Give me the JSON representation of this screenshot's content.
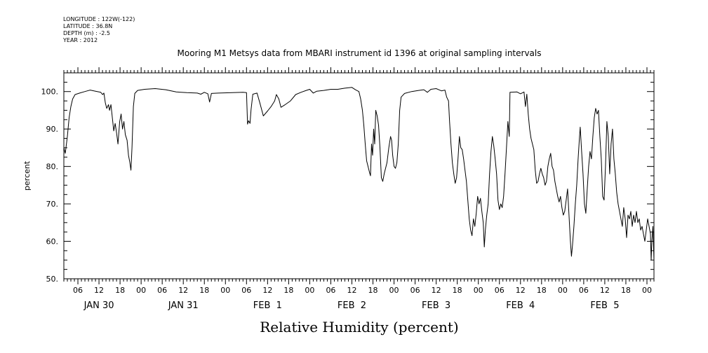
{
  "header": {
    "meta_lines": [
      "LONGITUDE : 122W(-122)",
      "LATITUDE : 36.8N",
      "DEPTH (m) : -2.5",
      "YEAR : 2012"
    ],
    "title": "Mooring M1 Metsys data from MBARI instrument id 1396 at original sampling intervals"
  },
  "chart_data": {
    "type": "line",
    "title": "Mooring M1 Metsys data from MBARI instrument id 1396 at original sampling intervals",
    "xlabel": "Relative Humidity (percent)",
    "ylabel": "percent",
    "ylim": [
      50,
      105
    ],
    "yticks": [
      50,
      60,
      70,
      80,
      90,
      100
    ],
    "ytick_labels": [
      "50.",
      "60.",
      "70.",
      "80.",
      "90.",
      "100."
    ],
    "xlim_hours": [
      2,
      170
    ],
    "x_unit": "hours after 2012-01-30 00:00",
    "hour_tick_labels": [
      "06",
      "12",
      "18",
      "00",
      "06",
      "12",
      "18",
      "00",
      "06",
      "12",
      "18",
      "00",
      "06",
      "12",
      "18",
      "00",
      "06",
      "12",
      "18",
      "00",
      "06",
      "12",
      "18",
      "00",
      "06",
      "12",
      "18",
      "00"
    ],
    "day_labels": [
      "JAN 30",
      "JAN 31",
      "FEB  1",
      "FEB  2",
      "FEB  3",
      "FEB  4",
      "FEB  5"
    ],
    "grid": false,
    "series": [
      {
        "color": "#000000",
        "points": [
          [
            2.0,
            85
          ],
          [
            2.4,
            83.5
          ],
          [
            3.0,
            88
          ],
          [
            3.5,
            93
          ],
          [
            4.0,
            96
          ],
          [
            4.5,
            98
          ],
          [
            5.2,
            99.2
          ],
          [
            6.5,
            99.6
          ],
          [
            8.0,
            100
          ],
          [
            9.5,
            100.4
          ],
          [
            11.0,
            100.1
          ],
          [
            12.5,
            99.8
          ],
          [
            13.0,
            99.2
          ],
          [
            13.4,
            99.6
          ],
          [
            13.8,
            97
          ],
          [
            14.2,
            95.5
          ],
          [
            14.7,
            96.5
          ],
          [
            15.0,
            95
          ],
          [
            15.4,
            96.5
          ],
          [
            15.8,
            93
          ],
          [
            16.2,
            89.5
          ],
          [
            16.6,
            91.5
          ],
          [
            17.0,
            89
          ],
          [
            17.4,
            86
          ],
          [
            17.9,
            92
          ],
          [
            18.3,
            94
          ],
          [
            18.7,
            90
          ],
          [
            19.1,
            92
          ],
          [
            19.5,
            88.5
          ],
          [
            20.0,
            87
          ],
          [
            20.4,
            83
          ],
          [
            20.8,
            81
          ],
          [
            21.1,
            79
          ],
          [
            21.4,
            85
          ],
          [
            21.8,
            96
          ],
          [
            22.2,
            99.5
          ],
          [
            23.0,
            100.3
          ],
          [
            25.0,
            100.6
          ],
          [
            28.0,
            100.8
          ],
          [
            31.0,
            100.5
          ],
          [
            34.0,
            99.9
          ],
          [
            37.0,
            99.7
          ],
          [
            40.0,
            99.6
          ],
          [
            41.0,
            99.3
          ],
          [
            42.0,
            99.8
          ],
          [
            43.0,
            99.4
          ],
          [
            43.5,
            97.2
          ],
          [
            44.0,
            99.5
          ],
          [
            46.0,
            99.6
          ],
          [
            50.0,
            99.7
          ],
          [
            53.0,
            99.8
          ],
          [
            54.0,
            99.7
          ],
          [
            54.3,
            91.3
          ],
          [
            54.6,
            92.2
          ],
          [
            55.0,
            91.5
          ],
          [
            55.3,
            95.2
          ],
          [
            55.8,
            99.3
          ],
          [
            57.0,
            99.6
          ],
          [
            57.8,
            97
          ],
          [
            58.8,
            93.5
          ],
          [
            60.0,
            94.8
          ],
          [
            61.0,
            96
          ],
          [
            62.0,
            97.5
          ],
          [
            62.5,
            99.2
          ],
          [
            63.2,
            98
          ],
          [
            63.8,
            95.8
          ],
          [
            65.0,
            96.5
          ],
          [
            66.5,
            97.5
          ],
          [
            68.0,
            99.2
          ],
          [
            69.5,
            99.8
          ],
          [
            71.0,
            100.3
          ],
          [
            72.0,
            100.6
          ],
          [
            73.0,
            99.6
          ],
          [
            74.0,
            100.1
          ],
          [
            76.0,
            100.3
          ],
          [
            78.0,
            100.6
          ],
          [
            80.0,
            100.6
          ],
          [
            82.0,
            100.9
          ],
          [
            84.0,
            101.1
          ],
          [
            85.0,
            100.5
          ],
          [
            86.0,
            100
          ],
          [
            86.5,
            98
          ],
          [
            87.0,
            95
          ],
          [
            87.4,
            91
          ],
          [
            87.8,
            86
          ],
          [
            88.2,
            81.5
          ],
          [
            88.6,
            80
          ],
          [
            89.0,
            78.5
          ],
          [
            89.3,
            77.5
          ],
          [
            89.6,
            86
          ],
          [
            89.9,
            83
          ],
          [
            90.2,
            90
          ],
          [
            90.5,
            86
          ],
          [
            90.8,
            95
          ],
          [
            91.2,
            93.5
          ],
          [
            91.6,
            91
          ],
          [
            92.0,
            85
          ],
          [
            92.4,
            77
          ],
          [
            92.8,
            76
          ],
          [
            93.2,
            78
          ],
          [
            93.6,
            79.5
          ],
          [
            94.0,
            81
          ],
          [
            94.5,
            85
          ],
          [
            95.0,
            88
          ],
          [
            95.3,
            87
          ],
          [
            95.6,
            83
          ],
          [
            96.0,
            80
          ],
          [
            96.4,
            79.5
          ],
          [
            96.8,
            81
          ],
          [
            97.2,
            86
          ],
          [
            97.6,
            95
          ],
          [
            98.0,
            98.5
          ],
          [
            99.0,
            99.5
          ],
          [
            101.0,
            100
          ],
          [
            103.0,
            100.3
          ],
          [
            104.5,
            100.5
          ],
          [
            105.5,
            99.8
          ],
          [
            106.5,
            100.6
          ],
          [
            108.0,
            100.8
          ],
          [
            109.5,
            100.2
          ],
          [
            110.5,
            100.4
          ],
          [
            111.0,
            98.5
          ],
          [
            111.5,
            97.5
          ],
          [
            111.8,
            92
          ],
          [
            112.2,
            86
          ],
          [
            112.6,
            81
          ],
          [
            113.0,
            78
          ],
          [
            113.4,
            75.5
          ],
          [
            113.8,
            77
          ],
          [
            114.2,
            82
          ],
          [
            114.6,
            88
          ],
          [
            115.0,
            85
          ],
          [
            115.4,
            84.5
          ],
          [
            115.8,
            82
          ],
          [
            116.2,
            79
          ],
          [
            116.6,
            76
          ],
          [
            117.0,
            71
          ],
          [
            117.4,
            66
          ],
          [
            117.8,
            63
          ],
          [
            118.2,
            61.5
          ],
          [
            118.6,
            66
          ],
          [
            119.0,
            64
          ],
          [
            119.4,
            67.5
          ],
          [
            119.8,
            72
          ],
          [
            120.2,
            70
          ],
          [
            120.6,
            71.5
          ],
          [
            121.0,
            68
          ],
          [
            121.4,
            65
          ],
          [
            121.7,
            58.5
          ],
          [
            122.0,
            63
          ],
          [
            122.4,
            67
          ],
          [
            122.8,
            70
          ],
          [
            123.2,
            78
          ],
          [
            123.6,
            84
          ],
          [
            124.0,
            88
          ],
          [
            124.4,
            85.5
          ],
          [
            124.8,
            82
          ],
          [
            125.2,
            78
          ],
          [
            125.6,
            71
          ],
          [
            126.0,
            68.5
          ],
          [
            126.4,
            70
          ],
          [
            126.8,
            69
          ],
          [
            127.2,
            72
          ],
          [
            127.6,
            78
          ],
          [
            128.0,
            85
          ],
          [
            128.4,
            92
          ],
          [
            128.8,
            88
          ],
          [
            129.0,
            99.8
          ],
          [
            131.0,
            99.9
          ],
          [
            132.0,
            99.4
          ],
          [
            133.0,
            99.9
          ],
          [
            133.4,
            96
          ],
          [
            133.8,
            99.3
          ],
          [
            134.2,
            94
          ],
          [
            134.6,
            90
          ],
          [
            135.0,
            87.5
          ],
          [
            135.4,
            86
          ],
          [
            135.8,
            84.5
          ],
          [
            136.2,
            79
          ],
          [
            136.6,
            75.5
          ],
          [
            137.0,
            76
          ],
          [
            137.4,
            78
          ],
          [
            137.8,
            79.5
          ],
          [
            138.2,
            78
          ],
          [
            138.6,
            77
          ],
          [
            139.0,
            75
          ],
          [
            139.4,
            76
          ],
          [
            139.8,
            80
          ],
          [
            140.2,
            82
          ],
          [
            140.6,
            83.5
          ],
          [
            141.0,
            80
          ],
          [
            141.4,
            79
          ],
          [
            141.8,
            76
          ],
          [
            142.2,
            74
          ],
          [
            142.6,
            72
          ],
          [
            143.0,
            70.5
          ],
          [
            143.4,
            72
          ],
          [
            143.8,
            69
          ],
          [
            144.2,
            67
          ],
          [
            144.6,
            68
          ],
          [
            145.0,
            71
          ],
          [
            145.4,
            74
          ],
          [
            145.8,
            67
          ],
          [
            146.2,
            60
          ],
          [
            146.5,
            56
          ],
          [
            146.8,
            59
          ],
          [
            147.2,
            64
          ],
          [
            147.6,
            70
          ],
          [
            148.0,
            75
          ],
          [
            148.4,
            82
          ],
          [
            148.8,
            88
          ],
          [
            149.0,
            90.5
          ],
          [
            149.4,
            84
          ],
          [
            149.8,
            78
          ],
          [
            150.2,
            70
          ],
          [
            150.6,
            67.5
          ],
          [
            151.0,
            74
          ],
          [
            151.4,
            80
          ],
          [
            151.8,
            84
          ],
          [
            152.2,
            82
          ],
          [
            152.6,
            88
          ],
          [
            153.0,
            93
          ],
          [
            153.4,
            95.5
          ],
          [
            153.8,
            94
          ],
          [
            154.2,
            95
          ],
          [
            154.6,
            88
          ],
          [
            155.0,
            82
          ],
          [
            155.4,
            72
          ],
          [
            155.8,
            71
          ],
          [
            156.2,
            80
          ],
          [
            156.6,
            92
          ],
          [
            157.0,
            88
          ],
          [
            157.4,
            78
          ],
          [
            157.8,
            86
          ],
          [
            158.2,
            90
          ],
          [
            158.6,
            82
          ],
          [
            159.0,
            78
          ],
          [
            159.4,
            73
          ],
          [
            159.8,
            70
          ],
          [
            160.2,
            68
          ],
          [
            160.6,
            66
          ],
          [
            161.0,
            64
          ],
          [
            161.4,
            69
          ],
          [
            161.8,
            66
          ],
          [
            162.2,
            61
          ],
          [
            162.6,
            67
          ],
          [
            163.0,
            66
          ],
          [
            163.4,
            68
          ],
          [
            163.8,
            64
          ],
          [
            164.2,
            67
          ],
          [
            164.6,
            65
          ],
          [
            165.0,
            68
          ],
          [
            165.4,
            65
          ],
          [
            165.8,
            66
          ],
          [
            166.2,
            63
          ],
          [
            166.6,
            64
          ],
          [
            167.0,
            62
          ],
          [
            167.4,
            60
          ],
          [
            167.8,
            63
          ],
          [
            168.2,
            66
          ],
          [
            168.6,
            64
          ],
          [
            169.0,
            62
          ],
          [
            169.2,
            55
          ],
          [
            169.4,
            60
          ],
          [
            169.7,
            64
          ],
          [
            170.0,
            55
          ]
        ]
      }
    ]
  }
}
